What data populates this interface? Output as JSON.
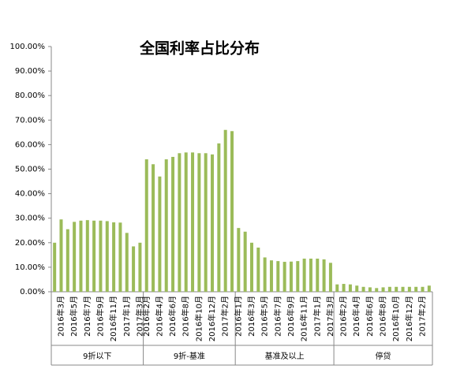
{
  "chart_data": {
    "type": "bar",
    "title": "全国利率占比分布",
    "color": "#9bbb59",
    "grid": false,
    "ylim": [
      0,
      100
    ],
    "yticks": [
      {
        "value": 0,
        "label": "0.00%"
      },
      {
        "value": 10,
        "label": "10.00%"
      },
      {
        "value": 20,
        "label": "20.00%"
      },
      {
        "value": 30,
        "label": "30.00%"
      },
      {
        "value": 40,
        "label": "40.00%"
      },
      {
        "value": 50,
        "label": "50.00%"
      },
      {
        "value": 60,
        "label": "60.00%"
      },
      {
        "value": 70,
        "label": "70.00%"
      },
      {
        "value": 80,
        "label": "80.00%"
      },
      {
        "value": 90,
        "label": "90.00%"
      },
      {
        "value": 100,
        "label": "100.00%"
      }
    ],
    "groups": [
      {
        "name": "9折以下",
        "categories": [
          null,
          "2016年3月",
          null,
          "2016年5月",
          null,
          "2016年7月",
          null,
          "2016年9月",
          null,
          "2016年11月",
          null,
          "2017年1月",
          null,
          "2017年3月"
        ],
        "values": [
          20,
          29.5,
          25.5,
          28.5,
          29,
          29.2,
          29,
          29,
          28.8,
          28.3,
          28.2,
          24,
          18.5,
          20
        ]
      },
      {
        "name": "9折-基准",
        "categories": [
          "2016年2月",
          null,
          "2016年4月",
          null,
          "2016年6月",
          null,
          "2016年8月",
          null,
          "2016年10月",
          null,
          "2016年12月",
          null,
          "2017年2月",
          null
        ],
        "values": [
          54,
          52,
          47,
          54,
          55,
          56.5,
          56.8,
          56.8,
          56.5,
          56.5,
          56,
          60.5,
          66,
          65.5
        ]
      },
      {
        "name": "基准及以上",
        "categories": [
          "2016年1月",
          null,
          "2016年3月",
          null,
          "2016年5月",
          null,
          "2016年7月",
          null,
          "2016年9月",
          null,
          "2016年11月",
          null,
          "2017年1月",
          null,
          "2017年3月"
        ],
        "values": [
          26,
          24.5,
          20,
          18,
          14,
          12.8,
          12.5,
          12.2,
          12.3,
          12.5,
          13.5,
          13.5,
          13.5,
          13.2,
          11.8
        ]
      },
      {
        "name": "停贷",
        "categories": [
          null,
          "2016年2月",
          null,
          "2016年4月",
          null,
          "2016年6月",
          null,
          "2016年8月",
          null,
          "2016年10月",
          null,
          "2016年12月",
          null,
          "2017年2月",
          null
        ],
        "values": [
          3,
          3.2,
          3,
          2.5,
          2,
          1.8,
          1.5,
          1.8,
          2,
          2,
          2,
          2,
          2,
          2,
          2.5
        ]
      }
    ]
  }
}
